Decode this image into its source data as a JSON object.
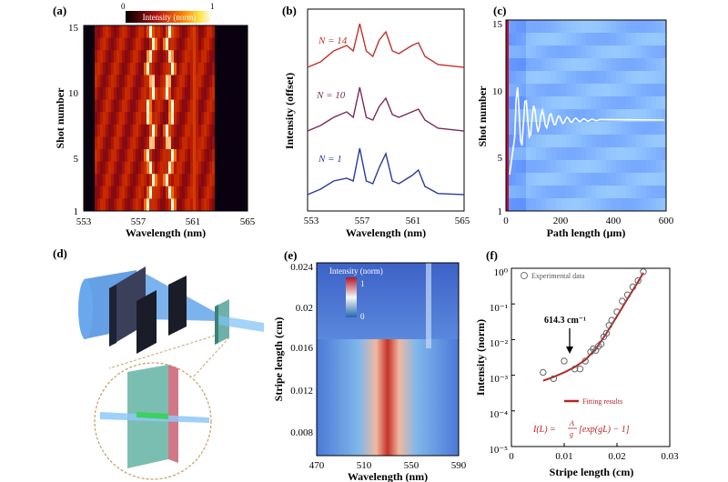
{
  "panels": {
    "a": {
      "label": "(a)",
      "colorbar": {
        "title": "Intensity (norm)",
        "min": "0",
        "max": "1"
      },
      "ylabel": "Shot number",
      "xlabel": "Wavelength (nm)",
      "xticks": [
        "553",
        "557",
        "561",
        "565"
      ],
      "yticks": [
        "1",
        "5",
        "10",
        "15"
      ]
    },
    "b": {
      "label": "(b)",
      "ylabel": "Intensity (offset)",
      "xlabel": "Wavelength (nm)",
      "xticks": [
        "553",
        "557",
        "561",
        "565"
      ],
      "series_labels": [
        "N = 14",
        "N = 10",
        "N = 1"
      ]
    },
    "c": {
      "label": "(c)",
      "ylabel": "Shot number",
      "xlabel": "Path length (μm)",
      "xticks": [
        "0",
        "200",
        "400",
        "600"
      ],
      "yticks": [
        "1",
        "5",
        "10",
        "15"
      ]
    },
    "d": {
      "label": "(d)"
    },
    "e": {
      "label": "(e)",
      "colorbar": {
        "title": "Intensity (norm)",
        "min": "0",
        "max": "1"
      },
      "ylabel": "Stripe length (cm)",
      "xlabel": "Wavelength (nm)",
      "xticks": [
        "470",
        "510",
        "550",
        "590"
      ],
      "yticks": [
        "0.008",
        "0.012",
        "0.016",
        "0.02",
        "0.024"
      ]
    },
    "f": {
      "label": "(f)",
      "ylabel": "Intensity (norm)",
      "xlabel": "Stripe length (cm)",
      "xticks": [
        "0",
        "0.01",
        "0.02",
        "0.03"
      ],
      "yticks": [
        "10⁰",
        "10⁻¹",
        "10⁻²",
        "10⁻³",
        "10⁻⁴",
        "10⁻⁵"
      ],
      "legend_data": "Experimental data",
      "legend_fit": "Fitting results",
      "annotation": "614.3 cm⁻¹",
      "formula_lhs": "I(L) =",
      "formula_num": "A",
      "formula_den": "g",
      "formula_rhs": "[exp(gL) − 1]"
    }
  },
  "chart_data": [
    {
      "type": "line",
      "panel": "f",
      "title": "",
      "xlabel": "Stripe length (cm)",
      "ylabel": "Intensity (norm)",
      "xlim": [
        0,
        0.03
      ],
      "ylim": [
        1e-05,
        1
      ],
      "y_scale": "log",
      "series": [
        {
          "name": "Experimental data",
          "x": [
            0.006,
            0.008,
            0.01,
            0.012,
            0.013,
            0.014,
            0.015,
            0.0155,
            0.016,
            0.0165,
            0.017,
            0.0175,
            0.018,
            0.0185,
            0.019,
            0.02,
            0.021,
            0.022,
            0.023,
            0.024,
            0.025
          ],
          "y": [
            0.0012,
            0.0008,
            0.0025,
            0.0015,
            0.0015,
            0.0025,
            0.0045,
            0.0055,
            0.005,
            0.0065,
            0.0075,
            0.012,
            0.015,
            0.025,
            0.035,
            0.06,
            0.12,
            0.18,
            0.3,
            0.45,
            0.8
          ]
        },
        {
          "name": "Fitting results",
          "x": [
            0.006,
            0.008,
            0.01,
            0.012,
            0.014,
            0.016,
            0.018,
            0.02,
            0.022,
            0.024,
            0.025
          ],
          "y": [
            0.0007,
            0.0009,
            0.0012,
            0.0017,
            0.0027,
            0.0055,
            0.015,
            0.045,
            0.14,
            0.42,
            0.75
          ]
        }
      ]
    },
    {
      "type": "line",
      "panel": "b",
      "title": "",
      "xlabel": "Wavelength (nm)",
      "ylabel": "Intensity (offset)",
      "xlim": [
        553,
        565
      ],
      "series": [
        {
          "name": "N = 14",
          "x": [
            553,
            554,
            555,
            556,
            556.5,
            557,
            557.5,
            558,
            558.5,
            559,
            559.5,
            560,
            561,
            561.5,
            562,
            563,
            565
          ],
          "y": [
            0.1,
            0.2,
            0.4,
            0.5,
            0.4,
            0.9,
            0.4,
            0.3,
            0.6,
            0.75,
            0.4,
            0.35,
            0.5,
            0.55,
            0.3,
            0.15,
            0.1
          ]
        },
        {
          "name": "N = 10",
          "x": [
            553,
            554,
            555,
            556,
            556.5,
            557,
            557.5,
            558,
            558.5,
            559,
            559.5,
            560,
            561,
            561.5,
            562,
            563,
            565
          ],
          "y": [
            0.1,
            0.2,
            0.35,
            0.45,
            0.35,
            0.9,
            0.35,
            0.3,
            0.55,
            0.7,
            0.4,
            0.35,
            0.45,
            0.5,
            0.3,
            0.15,
            0.1
          ]
        },
        {
          "name": "N = 1",
          "x": [
            553,
            554,
            555,
            556,
            556.5,
            557,
            557.5,
            558,
            558.5,
            559,
            559.5,
            560,
            561,
            561.5,
            562,
            563,
            565
          ],
          "y": [
            0.1,
            0.2,
            0.35,
            0.4,
            0.35,
            0.95,
            0.35,
            0.3,
            0.6,
            0.85,
            0.35,
            0.3,
            0.45,
            0.55,
            0.25,
            0.12,
            0.1
          ]
        }
      ]
    }
  ]
}
